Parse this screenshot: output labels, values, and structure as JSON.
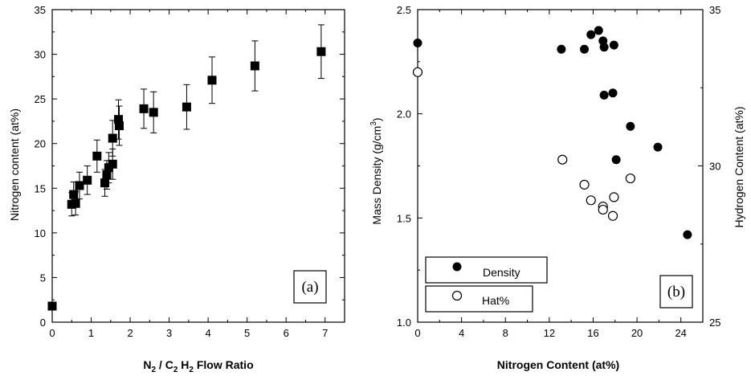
{
  "chart_data": [
    {
      "type": "scatter",
      "panel_label": "(a)",
      "xlabel": {
        "n": "N",
        "n_sub": "2",
        "sep": " / C",
        "c_sub": "2",
        "h": " H",
        "h_sub": "2",
        "rest": " Flow Ratio"
      },
      "ylabel": "Nitrogen content (at%)",
      "xlim": [
        0,
        7.5
      ],
      "ylim": [
        0,
        35
      ],
      "xticks": [
        0,
        1,
        2,
        3,
        4,
        5,
        6,
        7
      ],
      "yticks": [
        0,
        5,
        10,
        15,
        20,
        25,
        30,
        35
      ],
      "marker": "filled-square",
      "series": [
        {
          "points": [
            {
              "x": 0.0,
              "y": 1.8,
              "err": 0
            },
            {
              "x": 0.5,
              "y": 13.2,
              "err": 1.3
            },
            {
              "x": 0.55,
              "y": 14.3,
              "err": 1.4
            },
            {
              "x": 0.6,
              "y": 13.3,
              "err": 1.3
            },
            {
              "x": 0.7,
              "y": 15.3,
              "err": 1.5
            },
            {
              "x": 0.9,
              "y": 15.9,
              "err": 1.6
            },
            {
              "x": 1.15,
              "y": 18.6,
              "err": 1.8
            },
            {
              "x": 1.35,
              "y": 15.6,
              "err": 1.5
            },
            {
              "x": 1.4,
              "y": 16.5,
              "err": 1.6
            },
            {
              "x": 1.45,
              "y": 17.3,
              "err": 1.7
            },
            {
              "x": 1.55,
              "y": 20.6,
              "err": 2.0
            },
            {
              "x": 1.55,
              "y": 17.7,
              "err": 1.7
            },
            {
              "x": 1.7,
              "y": 22.7,
              "err": 2.2
            },
            {
              "x": 1.72,
              "y": 22.0,
              "err": 2.2
            },
            {
              "x": 2.35,
              "y": 23.9,
              "err": 2.2
            },
            {
              "x": 2.6,
              "y": 23.5,
              "err": 2.3
            },
            {
              "x": 3.45,
              "y": 24.1,
              "err": 2.5
            },
            {
              "x": 4.1,
              "y": 27.1,
              "err": 2.6
            },
            {
              "x": 5.2,
              "y": 28.7,
              "err": 2.8
            },
            {
              "x": 6.9,
              "y": 30.3,
              "err": 3.0
            }
          ]
        }
      ]
    },
    {
      "type": "scatter",
      "panel_label": "(b)",
      "xlabel": "Nitrogen Content (at%)",
      "ylabel_left": {
        "main": "Mass Density (g/cm",
        "sup": "3",
        "close": ")"
      },
      "ylabel_right": "Hydrogen Content (at%)",
      "xlim": [
        0,
        26
      ],
      "ylim_left": [
        1.0,
        2.5
      ],
      "ylim_right": [
        25,
        35
      ],
      "xticks": [
        0,
        4,
        8,
        12,
        16,
        20,
        24
      ],
      "yticks_left": [
        "1.0",
        "1.5",
        "2.0",
        "2.5"
      ],
      "yticks_right": [
        "25",
        "30",
        "35"
      ],
      "legend": {
        "position": "bottom-left",
        "entries": [
          {
            "label": "Density",
            "marker": "filled-circle"
          },
          {
            "label": "Hat%",
            "marker": "open-circle"
          }
        ]
      },
      "series": [
        {
          "name": "Density",
          "axis": "left",
          "marker": "filled-circle",
          "points": [
            {
              "x": 0.0,
              "y": 2.34
            },
            {
              "x": 13.1,
              "y": 2.31
            },
            {
              "x": 15.2,
              "y": 2.31
            },
            {
              "x": 15.8,
              "y": 2.38
            },
            {
              "x": 16.5,
              "y": 2.4
            },
            {
              "x": 16.9,
              "y": 2.35
            },
            {
              "x": 17.0,
              "y": 2.32
            },
            {
              "x": 17.9,
              "y": 2.33
            },
            {
              "x": 17.0,
              "y": 2.09
            },
            {
              "x": 17.8,
              "y": 2.1
            },
            {
              "x": 19.4,
              "y": 1.94
            },
            {
              "x": 18.1,
              "y": 1.78
            },
            {
              "x": 21.9,
              "y": 1.84
            },
            {
              "x": 24.6,
              "y": 1.42
            }
          ]
        },
        {
          "name": "Hat%",
          "axis": "right",
          "marker": "open-circle",
          "points": [
            {
              "x": 0.0,
              "y": 33.0
            },
            {
              "x": 13.2,
              "y": 30.2
            },
            {
              "x": 15.2,
              "y": 29.4
            },
            {
              "x": 15.8,
              "y": 28.9
            },
            {
              "x": 16.9,
              "y": 28.7
            },
            {
              "x": 16.9,
              "y": 28.6
            },
            {
              "x": 17.9,
              "y": 29.0
            },
            {
              "x": 17.8,
              "y": 28.4
            },
            {
              "x": 19.4,
              "y": 29.6
            }
          ]
        }
      ]
    }
  ]
}
